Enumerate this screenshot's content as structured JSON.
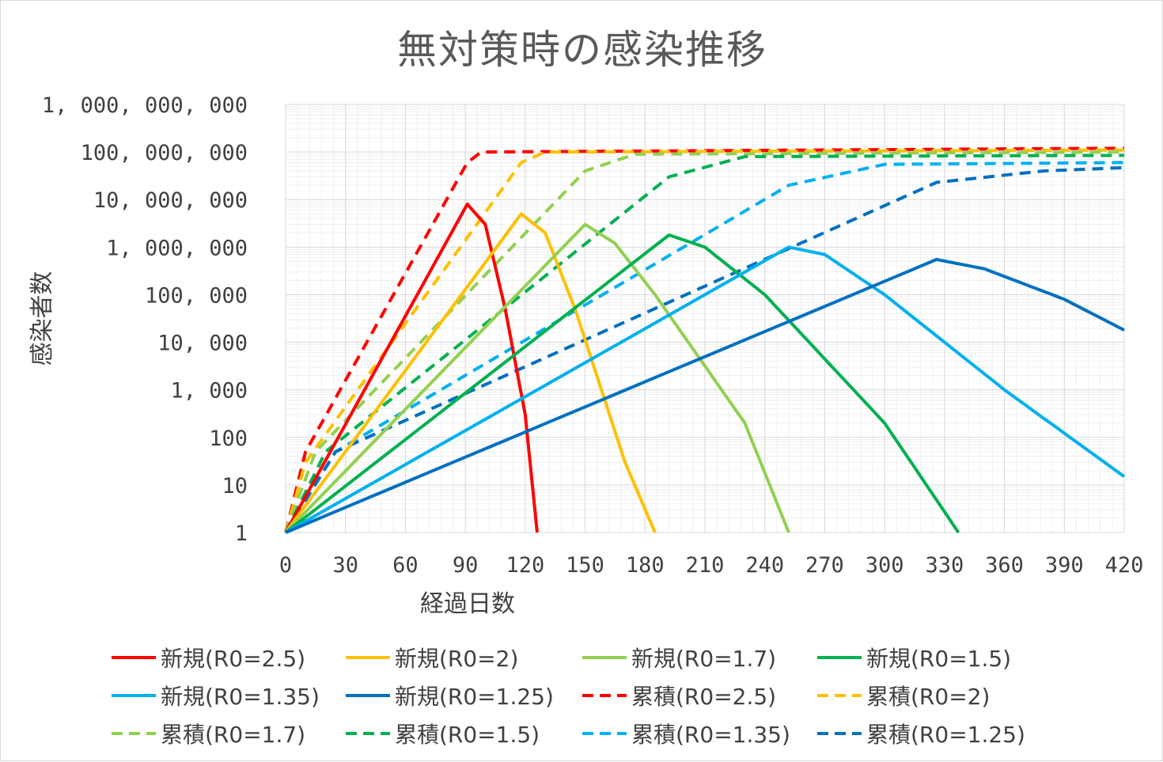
{
  "chart_data": {
    "type": "line",
    "title": "無対策時の感染推移",
    "xlabel": "経過日数",
    "ylabel": "感染者数",
    "xlim": [
      0,
      420
    ],
    "ylim": [
      1,
      1000000000
    ],
    "yscale": "log",
    "grid": true,
    "legend_position": "bottom",
    "x_ticks": [
      "0",
      "30",
      "60",
      "90",
      "120",
      "150",
      "180",
      "210",
      "240",
      "270",
      "300",
      "330",
      "360",
      "390",
      "420"
    ],
    "y_ticks": [
      "1",
      "10",
      "100",
      "1,000",
      "10,000",
      "100,000",
      "1,000,000",
      "10,000,000",
      "100,000,000",
      "1,000,000,000"
    ],
    "series": [
      {
        "name": "新規(R0=2.5)",
        "color": "#ff0000",
        "dash": false,
        "points": [
          [
            0,
            1
          ],
          [
            91,
            8000000
          ],
          [
            100,
            3000000
          ],
          [
            110,
            50000
          ],
          [
            120,
            300
          ],
          [
            126,
            1
          ]
        ]
      },
      {
        "name": "新規(R0=2)",
        "color": "#ffc000",
        "dash": false,
        "points": [
          [
            0,
            1
          ],
          [
            118,
            5000000
          ],
          [
            130,
            2000000
          ],
          [
            145,
            50000
          ],
          [
            170,
            30
          ],
          [
            185,
            1
          ]
        ]
      },
      {
        "name": "新規(R0=1.7)",
        "color": "#92d050",
        "dash": false,
        "points": [
          [
            0,
            1
          ],
          [
            150,
            3000000
          ],
          [
            165,
            1200000
          ],
          [
            185,
            100000
          ],
          [
            230,
            200
          ],
          [
            252,
            1
          ]
        ]
      },
      {
        "name": "新規(R0=1.5)",
        "color": "#00b050",
        "dash": false,
        "points": [
          [
            0,
            1
          ],
          [
            192,
            1800000
          ],
          [
            210,
            1000000
          ],
          [
            240,
            100000
          ],
          [
            300,
            200
          ],
          [
            337,
            1
          ]
        ]
      },
      {
        "name": "新規(R0=1.35)",
        "color": "#00b0f0",
        "dash": false,
        "points": [
          [
            0,
            1
          ],
          [
            252,
            1000000
          ],
          [
            270,
            700000
          ],
          [
            300,
            100000
          ],
          [
            360,
            1000
          ],
          [
            420,
            15
          ]
        ]
      },
      {
        "name": "新規(R0=1.25)",
        "color": "#0070c0",
        "dash": false,
        "points": [
          [
            0,
            1
          ],
          [
            326,
            550000
          ],
          [
            350,
            350000
          ],
          [
            390,
            80000
          ],
          [
            420,
            18000
          ]
        ]
      },
      {
        "name": "累積(R0=2.5)",
        "color": "#ff0000",
        "dash": true,
        "points": [
          [
            0,
            1
          ],
          [
            10,
            50
          ],
          [
            91,
            60000000
          ],
          [
            98,
            100000000
          ],
          [
            420,
            120000000
          ]
        ]
      },
      {
        "name": "累積(R0=2)",
        "color": "#ffc000",
        "dash": true,
        "points": [
          [
            0,
            1
          ],
          [
            10,
            30
          ],
          [
            118,
            60000000
          ],
          [
            130,
            100000000
          ],
          [
            420,
            110000000
          ]
        ]
      },
      {
        "name": "累積(R0=1.7)",
        "color": "#92d050",
        "dash": true,
        "points": [
          [
            0,
            1
          ],
          [
            15,
            50
          ],
          [
            150,
            40000000
          ],
          [
            175,
            90000000
          ],
          [
            420,
            100000000
          ]
        ]
      },
      {
        "name": "累積(R0=1.5)",
        "color": "#00b050",
        "dash": true,
        "points": [
          [
            0,
            1
          ],
          [
            20,
            50
          ],
          [
            192,
            30000000
          ],
          [
            230,
            80000000
          ],
          [
            420,
            85000000
          ]
        ]
      },
      {
        "name": "累積(R0=1.35)",
        "color": "#00b0f0",
        "dash": true,
        "points": [
          [
            0,
            1
          ],
          [
            25,
            50
          ],
          [
            252,
            20000000
          ],
          [
            300,
            55000000
          ],
          [
            420,
            60000000
          ]
        ]
      },
      {
        "name": "累積(R0=1.25)",
        "color": "#0070c0",
        "dash": true,
        "points": [
          [
            0,
            1
          ],
          [
            25,
            50
          ],
          [
            326,
            23000000
          ],
          [
            380,
            40000000
          ],
          [
            420,
            47000000
          ]
        ]
      }
    ]
  }
}
